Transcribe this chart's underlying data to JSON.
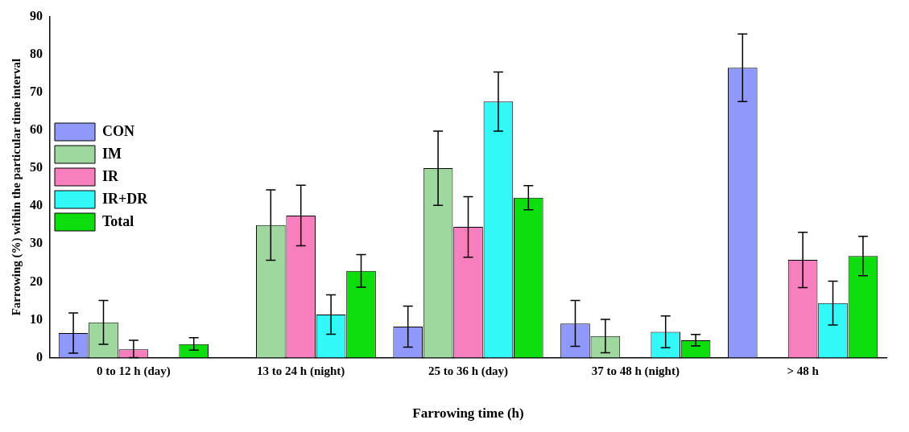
{
  "chart_data": {
    "type": "bar",
    "xlabel": "Farrowing time (h)",
    "ylabel": "Farrowing (%) within the particular time interval",
    "categories": [
      "0 to 12 h (day)",
      "13 to 24 h (night)",
      "25 to 36 h (day)",
      "37 to 48 h (night)",
      "> 48 h"
    ],
    "series": [
      {
        "name": "CON",
        "color": "#8f99fb",
        "values": [
          6.5,
          0,
          8.2,
          9,
          76.5
        ],
        "errors": [
          [
            1.2,
            11.8
          ],
          null,
          [
            2.8,
            13.6
          ],
          [
            3,
            15.1
          ],
          [
            67.6,
            85.4
          ]
        ]
      },
      {
        "name": "IM",
        "color": "#9fd89f",
        "values": [
          9.3,
          35,
          50,
          5.7,
          0
        ],
        "errors": [
          [
            3.5,
            15.1
          ],
          [
            25.7,
            44.3
          ],
          [
            40.2,
            59.8
          ],
          [
            1.3,
            10.1
          ],
          null
        ]
      },
      {
        "name": "IR",
        "color": "#f77fbe",
        "values": [
          2.2,
          37.5,
          34.5,
          0,
          25.8
        ],
        "errors": [
          [
            0,
            4.6
          ],
          [
            29.5,
            45.5
          ],
          [
            26.5,
            42.5
          ],
          null,
          [
            18.5,
            33.1
          ]
        ]
      },
      {
        "name": "IR+DR",
        "color": "#33f8f8",
        "values": [
          0,
          11.4,
          67.6,
          6.8,
          14.4
        ],
        "errors": [
          null,
          [
            6.2,
            16.6
          ],
          [
            59.8,
            75.4
          ],
          [
            2.6,
            11
          ],
          [
            8.6,
            20.2
          ]
        ]
      },
      {
        "name": "Total",
        "color": "#0ddd0d",
        "values": [
          3.6,
          22.9,
          42.2,
          4.6,
          26.8
        ],
        "errors": [
          [
            2,
            5.3
          ],
          [
            18.6,
            27.2
          ],
          [
            39,
            45.4
          ],
          [
            3.1,
            6.1
          ],
          [
            21.6,
            32
          ]
        ]
      }
    ],
    "ylim": [
      0,
      90
    ],
    "yticks": [
      0,
      10,
      20,
      30,
      40,
      50,
      60,
      70,
      80,
      90
    ],
    "grid": false,
    "legend": "top"
  }
}
